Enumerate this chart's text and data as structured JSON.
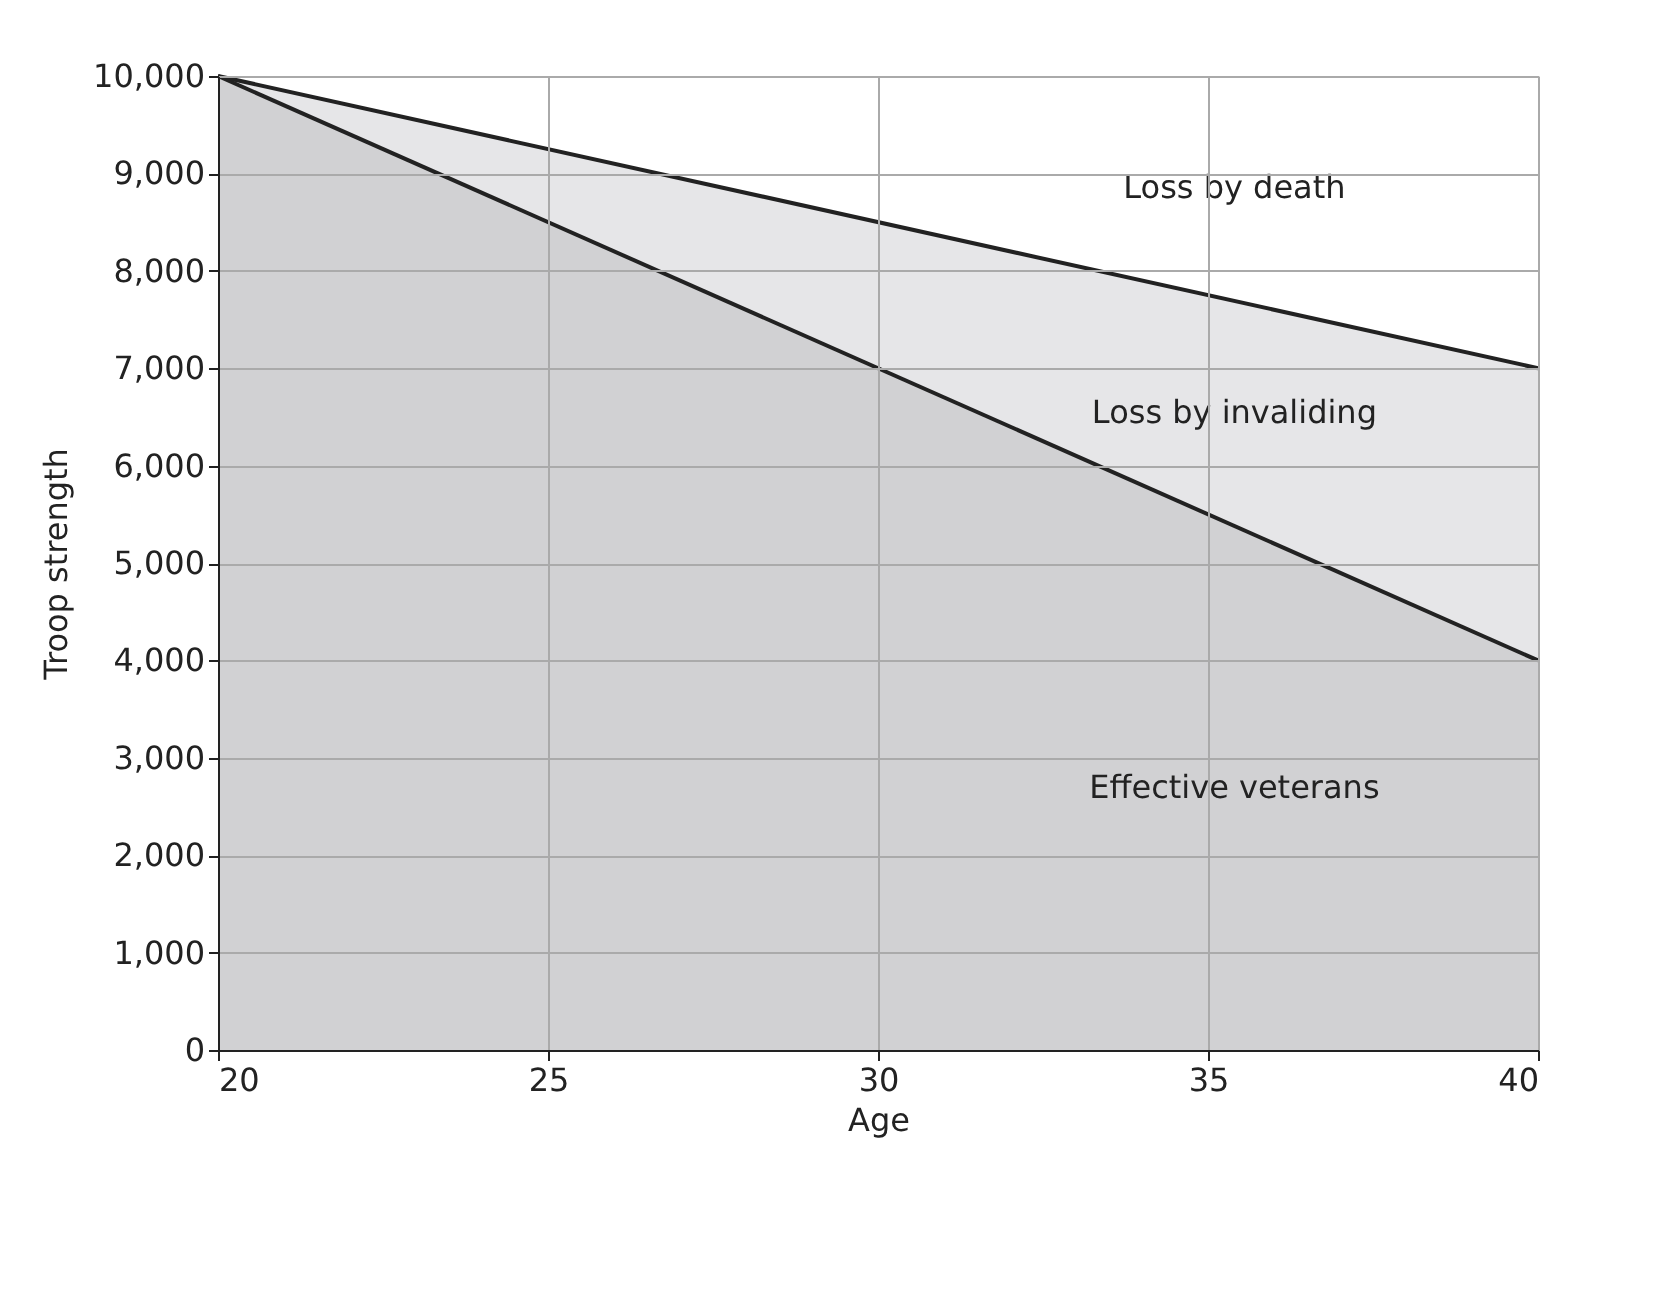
{
  "chart_data": {
    "type": "area",
    "stacked": true,
    "xlabel": "Age",
    "ylabel": "Troop strength",
    "x": [
      20,
      40
    ],
    "series": [
      {
        "name": "Effective veterans",
        "color": "#d1d1d3",
        "values": [
          10000,
          4000
        ]
      },
      {
        "name": "Loss by invaliding",
        "color": "#e6e6e8",
        "values": [
          0,
          3000
        ]
      }
    ],
    "annotations": [
      "Loss by death"
    ],
    "xlim": [
      20,
      40
    ],
    "xticks": [
      20,
      25,
      30,
      35,
      40
    ],
    "ylim": [
      0,
      10000
    ],
    "yticks": [
      0,
      {
        "value": 1000,
        "label": "1,000"
      },
      {
        "value": 2000,
        "label": "2,000"
      },
      {
        "value": 3000,
        "label": "3,000"
      },
      {
        "value": 4000,
        "label": "4,000"
      },
      {
        "value": 5000,
        "label": "5,000"
      },
      {
        "value": 6000,
        "label": "6,000"
      },
      {
        "value": 7000,
        "label": "7,000"
      },
      {
        "value": 8000,
        "label": "8,000"
      },
      {
        "value": 9000,
        "label": "9,000"
      },
      {
        "value": 10000,
        "label": "10,000"
      }
    ],
    "grid": true
  }
}
